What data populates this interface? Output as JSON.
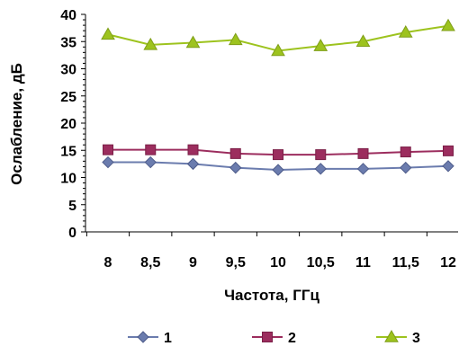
{
  "chart_data": {
    "type": "line",
    "title": "",
    "xlabel": "Частота, ГГц",
    "ylabel": "Ослабление, дБ",
    "x": [
      8,
      8.5,
      9,
      9.5,
      10,
      10.5,
      11,
      11.5,
      12
    ],
    "x_tick_labels": [
      "8",
      "8,5",
      "9",
      "9,5",
      "10",
      "10,5",
      "11",
      "11,5",
      "12"
    ],
    "ylim": [
      0,
      40
    ],
    "y_ticks": [
      0,
      5,
      10,
      15,
      20,
      25,
      30,
      35,
      40
    ],
    "y_tick_labels": [
      "0",
      "5",
      "10",
      "15",
      "20",
      "25",
      "30",
      "35",
      "40"
    ],
    "grid": false,
    "legend_position": "bottom",
    "series": [
      {
        "name": "1",
        "color": "#6b7cae",
        "marker": "diamond",
        "values": [
          12.8,
          12.8,
          12.5,
          11.8,
          11.4,
          11.6,
          11.6,
          11.8,
          12.1
        ]
      },
      {
        "name": "2",
        "color": "#9c2d5e",
        "marker": "square",
        "values": [
          15.1,
          15.1,
          15.1,
          14.4,
          14.2,
          14.2,
          14.4,
          14.7,
          14.9
        ]
      },
      {
        "name": "3",
        "color": "#9dc31e",
        "marker": "triangle",
        "values": [
          36.3,
          34.4,
          34.8,
          35.3,
          33.3,
          34.2,
          35.0,
          36.7,
          37.9
        ]
      }
    ]
  }
}
